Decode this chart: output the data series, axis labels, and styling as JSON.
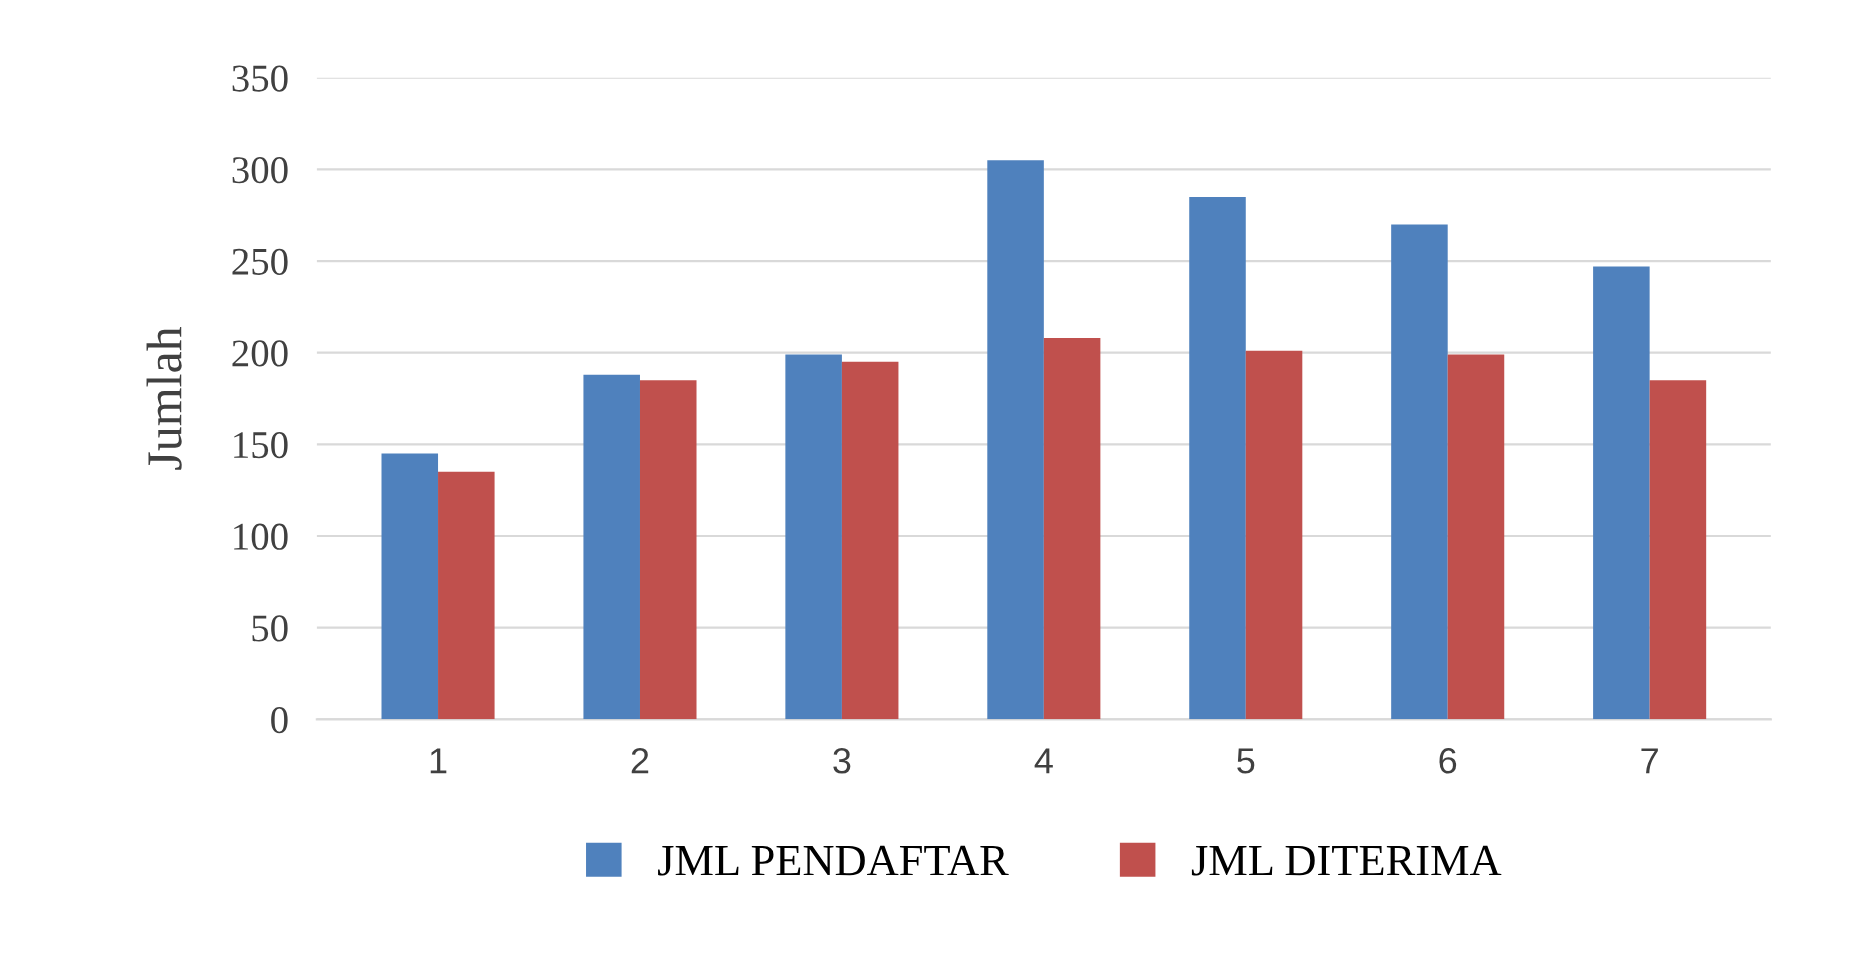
{
  "chart_data": {
    "type": "bar",
    "ylabel": "Jumlah",
    "categories": [
      "1",
      "2",
      "3",
      "4",
      "5",
      "6",
      "7"
    ],
    "series": [
      {
        "name": "JML PENDAFTAR",
        "color": "#4f81bd",
        "values": [
          145,
          188,
          199,
          305,
          285,
          270,
          247
        ]
      },
      {
        "name": "JML DITERIMA",
        "color": "#c0504d",
        "values": [
          135,
          185,
          195,
          208,
          201,
          199,
          185
        ]
      }
    ],
    "ylim": [
      0,
      350
    ],
    "yticks": [
      0,
      50,
      100,
      150,
      200,
      250,
      300,
      350
    ],
    "grid": "y",
    "legend": "bottom"
  }
}
